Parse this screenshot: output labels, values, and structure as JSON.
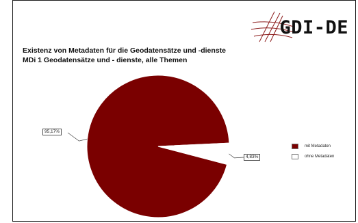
{
  "logo": {
    "text": "GDI-DE",
    "accent": "#8b1a1a"
  },
  "title_lines": [
    "Existenz von Metadaten für die Geodatensätze und -dienste",
    "MDi 1 Geodatensätze und - dienste, alle Themen"
  ],
  "chart_data": {
    "type": "pie",
    "title": "Existenz von Metadaten für die Geodatensätze und -dienste",
    "subtitle": "MDi 1 Geodatensätze und - dienste, alle Themen",
    "categories": [
      "mit Metadaten",
      "ohne Metadaten"
    ],
    "values": [
      95.17,
      4.83
    ],
    "data_labels": [
      "95,17%",
      "4,83%"
    ],
    "colors": [
      "#7a0000",
      "#ffffff"
    ],
    "legend_position": "right"
  }
}
